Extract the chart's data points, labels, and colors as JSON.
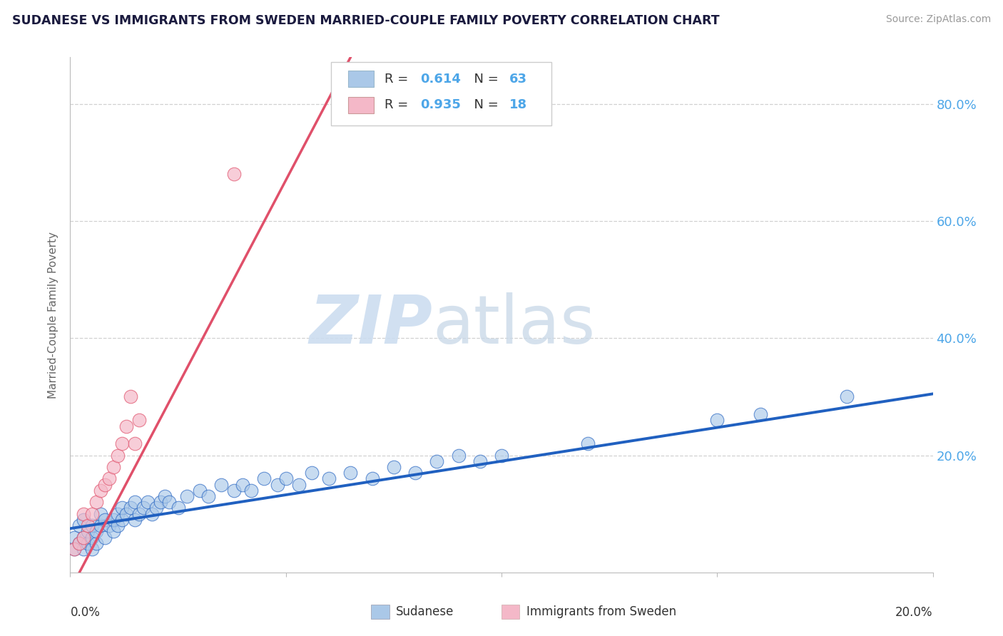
{
  "title": "SUDANESE VS IMMIGRANTS FROM SWEDEN MARRIED-COUPLE FAMILY POVERTY CORRELATION CHART",
  "source": "Source: ZipAtlas.com",
  "ylabel": "Married-Couple Family Poverty",
  "xmin": 0.0,
  "xmax": 0.2,
  "ymin": 0.0,
  "ymax": 0.88,
  "ytick_vals": [
    0.0,
    0.2,
    0.4,
    0.6,
    0.8
  ],
  "ytick_labels": [
    "",
    "20.0%",
    "40.0%",
    "60.0%",
    "80.0%"
  ],
  "xtick_labels_show": [
    "0.0%",
    "20.0%"
  ],
  "watermark_zip": "ZIP",
  "watermark_atlas": "atlas",
  "legend_blue_label": "Sudanese",
  "legend_pink_label": "Immigrants from Sweden",
  "R_blue": "0.614",
  "N_blue": "63",
  "R_pink": "0.935",
  "N_pink": "18",
  "blue_scatter_color": "#aac8e8",
  "pink_scatter_color": "#f4b8c8",
  "blue_line_color": "#2060c0",
  "pink_line_color": "#e0506a",
  "grid_color": "#cccccc",
  "axis_label_color": "#4da6e8",
  "title_color": "#1a1a3e",
  "source_color": "#999999",
  "text_color": "#333333",
  "background": "#ffffff",
  "blue_slope": 1.15,
  "blue_intercept": 0.075,
  "pink_slope": 14.0,
  "pink_intercept": -0.03,
  "blue_x": [
    0.001,
    0.001,
    0.002,
    0.002,
    0.003,
    0.003,
    0.003,
    0.004,
    0.004,
    0.005,
    0.005,
    0.005,
    0.006,
    0.006,
    0.007,
    0.007,
    0.008,
    0.008,
    0.009,
    0.01,
    0.01,
    0.011,
    0.011,
    0.012,
    0.012,
    0.013,
    0.014,
    0.015,
    0.015,
    0.016,
    0.017,
    0.018,
    0.019,
    0.02,
    0.021,
    0.022,
    0.023,
    0.025,
    0.027,
    0.03,
    0.032,
    0.035,
    0.038,
    0.04,
    0.042,
    0.045,
    0.048,
    0.05,
    0.053,
    0.056,
    0.06,
    0.065,
    0.07,
    0.075,
    0.08,
    0.085,
    0.09,
    0.095,
    0.1,
    0.12,
    0.15,
    0.16,
    0.18
  ],
  "blue_y": [
    0.04,
    0.06,
    0.05,
    0.08,
    0.04,
    0.06,
    0.09,
    0.05,
    0.07,
    0.04,
    0.06,
    0.08,
    0.05,
    0.07,
    0.08,
    0.1,
    0.06,
    0.09,
    0.08,
    0.07,
    0.09,
    0.1,
    0.08,
    0.09,
    0.11,
    0.1,
    0.11,
    0.09,
    0.12,
    0.1,
    0.11,
    0.12,
    0.1,
    0.11,
    0.12,
    0.13,
    0.12,
    0.11,
    0.13,
    0.14,
    0.13,
    0.15,
    0.14,
    0.15,
    0.14,
    0.16,
    0.15,
    0.16,
    0.15,
    0.17,
    0.16,
    0.17,
    0.16,
    0.18,
    0.17,
    0.19,
    0.2,
    0.19,
    0.2,
    0.22,
    0.26,
    0.27,
    0.3
  ],
  "pink_x": [
    0.001,
    0.002,
    0.003,
    0.003,
    0.004,
    0.005,
    0.006,
    0.007,
    0.008,
    0.009,
    0.01,
    0.011,
    0.012,
    0.013,
    0.014,
    0.015,
    0.016,
    0.038
  ],
  "pink_y": [
    0.04,
    0.05,
    0.06,
    0.1,
    0.08,
    0.1,
    0.12,
    0.14,
    0.15,
    0.16,
    0.18,
    0.2,
    0.22,
    0.25,
    0.3,
    0.22,
    0.26,
    0.68
  ]
}
